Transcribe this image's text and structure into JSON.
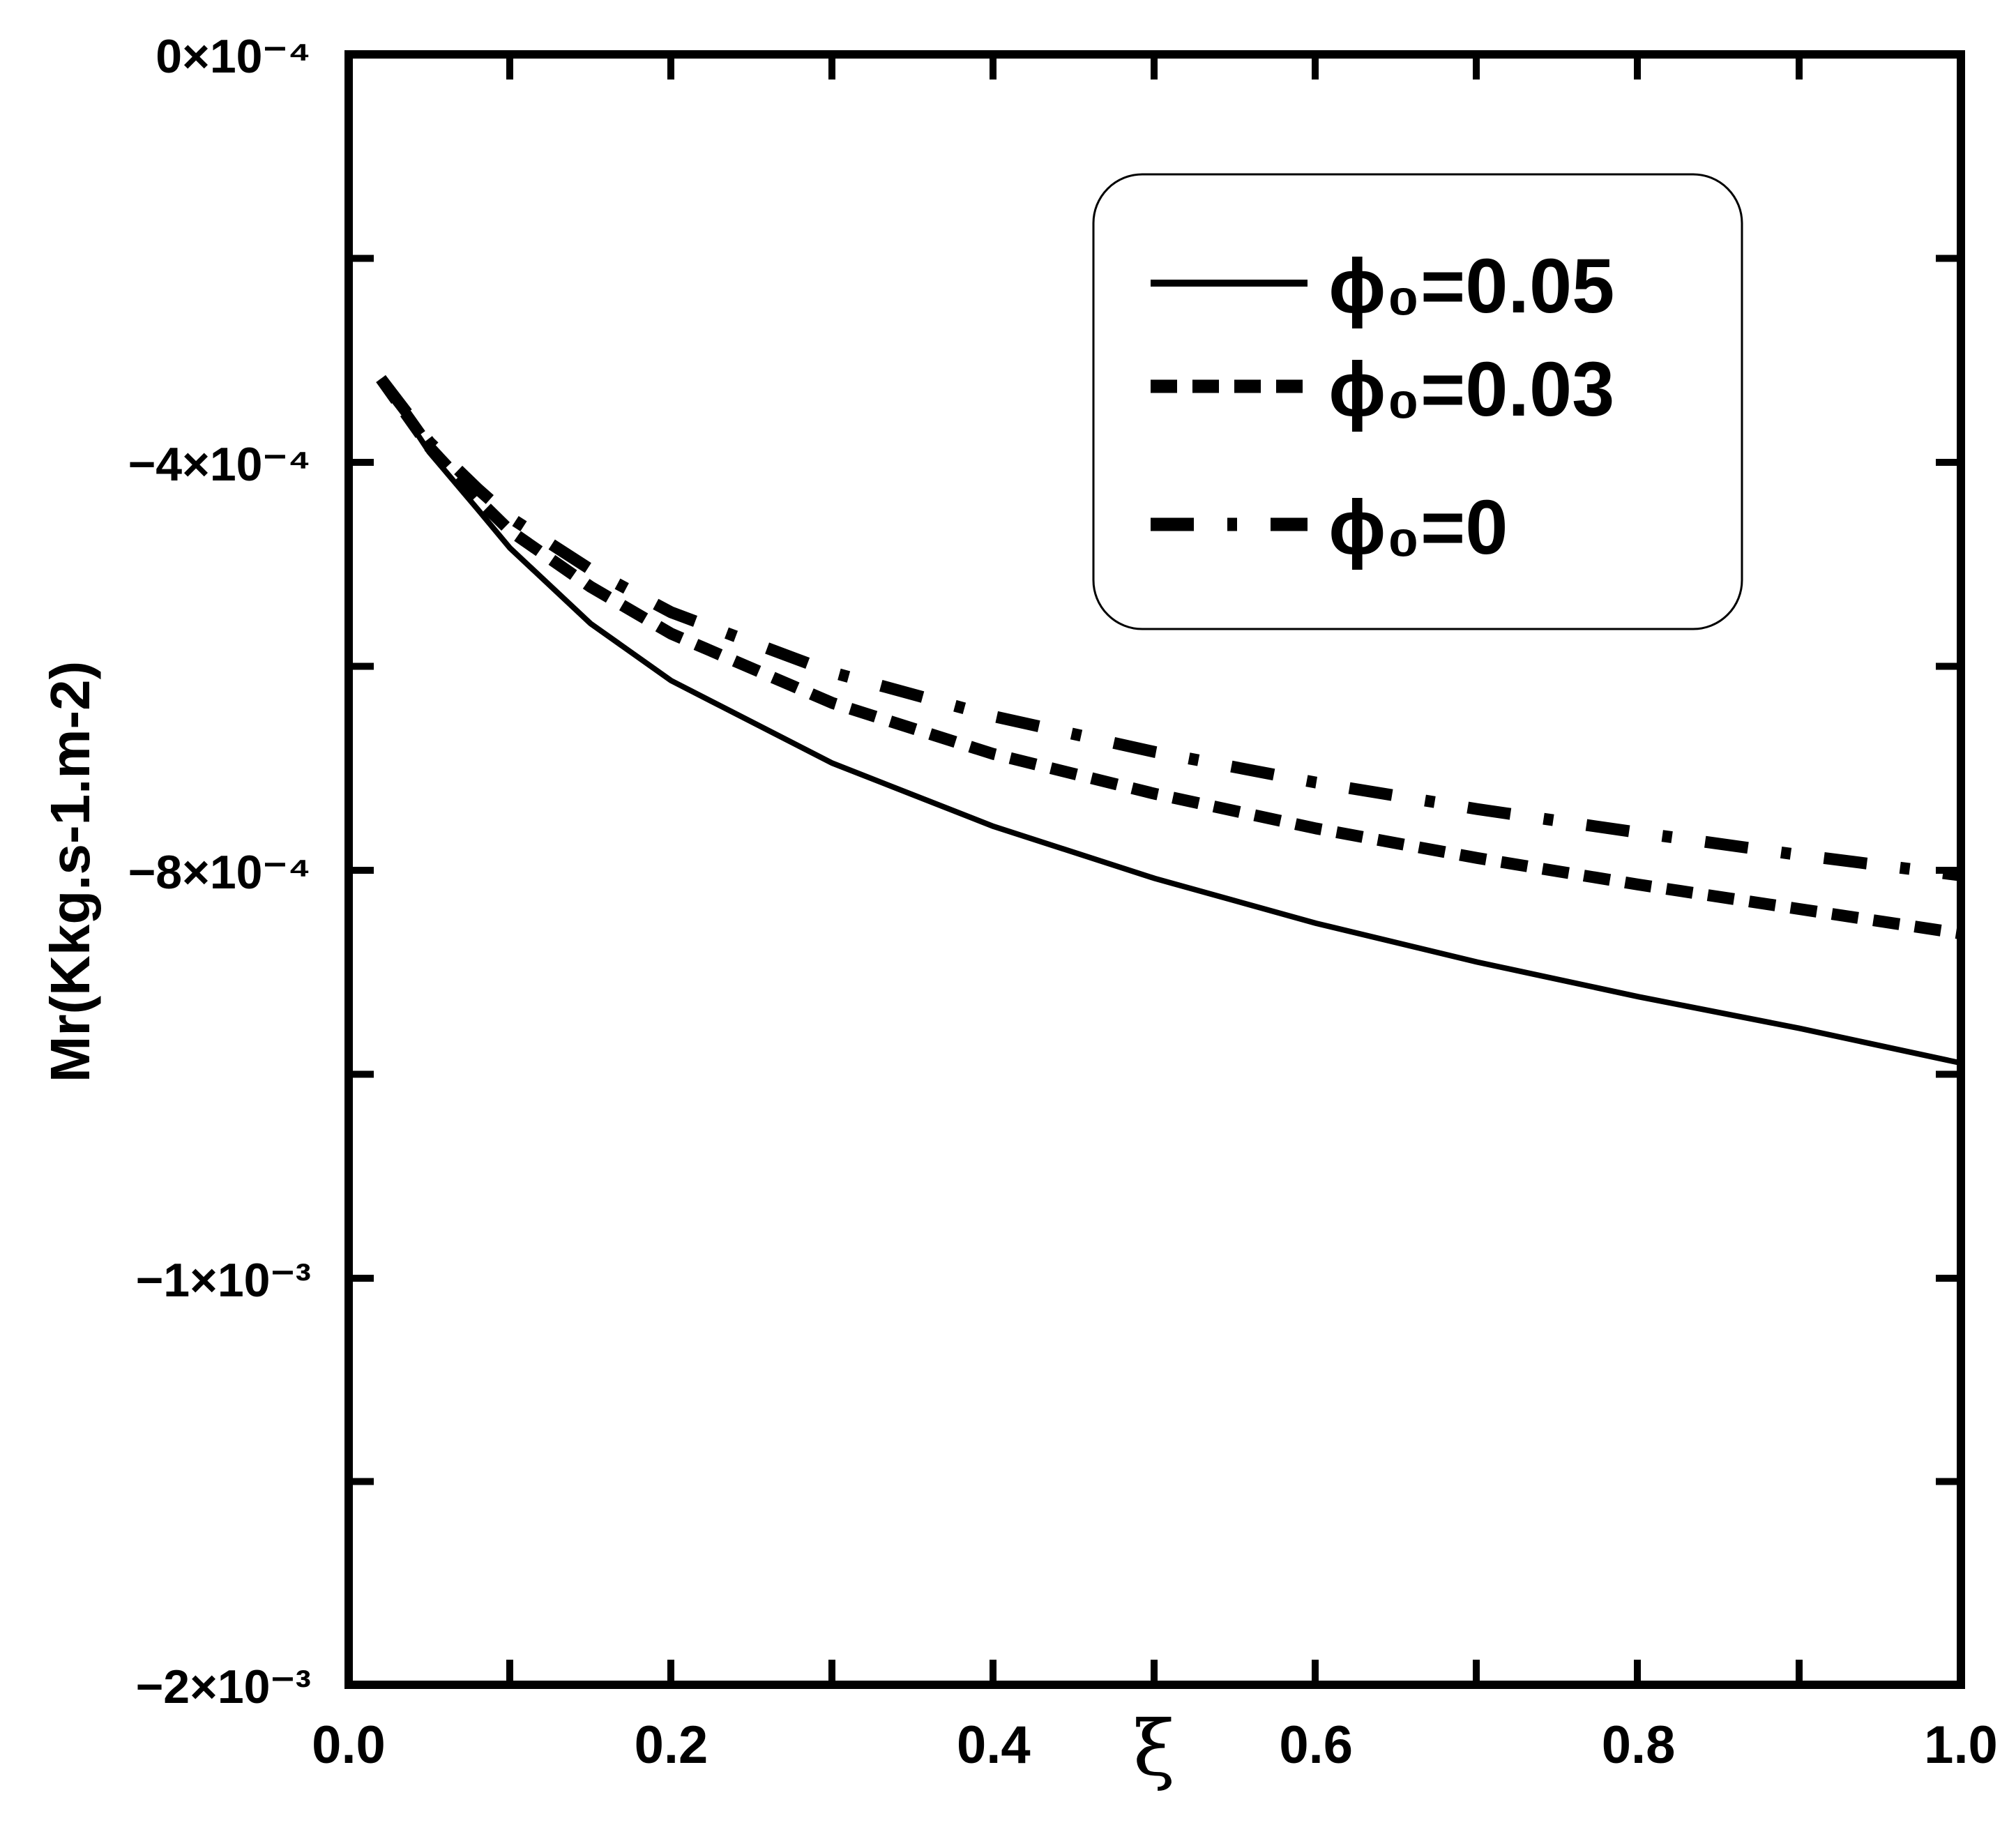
{
  "chart_data": {
    "type": "line",
    "title": "",
    "xlabel": "ξ",
    "ylabel": "Mr(Kkg.s-1.m-2)",
    "xlim": [
      0,
      1
    ],
    "ylim": [
      -0.0016,
      0
    ],
    "x_ticks": [
      {
        "value": 0.0,
        "label": "0.0"
      },
      {
        "value": 0.2,
        "label": "0.2"
      },
      {
        "value": 0.4,
        "label": "0.4"
      },
      {
        "value": 0.6,
        "label": "0.6"
      },
      {
        "value": 0.8,
        "label": "0.8"
      },
      {
        "value": 1.0,
        "label": "1.0"
      }
    ],
    "y_ticks": [
      {
        "value": 0,
        "label": "0×10⁻⁴"
      },
      {
        "value": -0.0004,
        "label": "−4×10⁻⁴"
      },
      {
        "value": -0.0008,
        "label": "−8×10⁻⁴"
      },
      {
        "value": -0.0012,
        "label": "−1×10⁻³"
      },
      {
        "value": -0.0016,
        "label": "−2×10⁻³"
      }
    ],
    "grid": false,
    "legend_position": "top-right",
    "series": [
      {
        "name": "ϕ₀=0.05",
        "style": "solid",
        "x": [
          0.02,
          0.05,
          0.08,
          0.1,
          0.15,
          0.2,
          0.3,
          0.4,
          0.5,
          0.6,
          0.7,
          0.8,
          0.9,
          1.0
        ],
        "y": [
          -0.000318,
          -0.00039,
          -0.000446,
          -0.000484,
          -0.000558,
          -0.000614,
          -0.000695,
          -0.000757,
          -0.000808,
          -0.000852,
          -0.00089,
          -0.000924,
          -0.000955,
          -0.000989
        ]
      },
      {
        "name": "ϕ₀=0.03",
        "style": "dashed",
        "x": [
          0.02,
          0.05,
          0.08,
          0.1,
          0.15,
          0.2,
          0.3,
          0.4,
          0.5,
          0.6,
          0.7,
          0.8,
          0.9,
          1.0
        ],
        "y": [
          -0.000318,
          -0.000385,
          -0.000436,
          -0.000467,
          -0.000522,
          -0.000568,
          -0.000636,
          -0.000686,
          -0.000725,
          -0.000759,
          -0.000788,
          -0.000814,
          -0.000838,
          -0.000862
        ]
      },
      {
        "name": "ϕ₀=0",
        "style": "dashdot",
        "x": [
          0.02,
          0.05,
          0.08,
          0.1,
          0.15,
          0.2,
          0.3,
          0.4,
          0.5,
          0.6,
          0.7,
          0.8,
          0.9,
          1.0
        ],
        "y": [
          -0.000318,
          -0.00038,
          -0.000426,
          -0.000454,
          -0.000505,
          -0.000547,
          -0.000606,
          -0.000649,
          -0.000684,
          -0.000714,
          -0.00074,
          -0.000763,
          -0.000785,
          -0.000805
        ]
      }
    ]
  }
}
